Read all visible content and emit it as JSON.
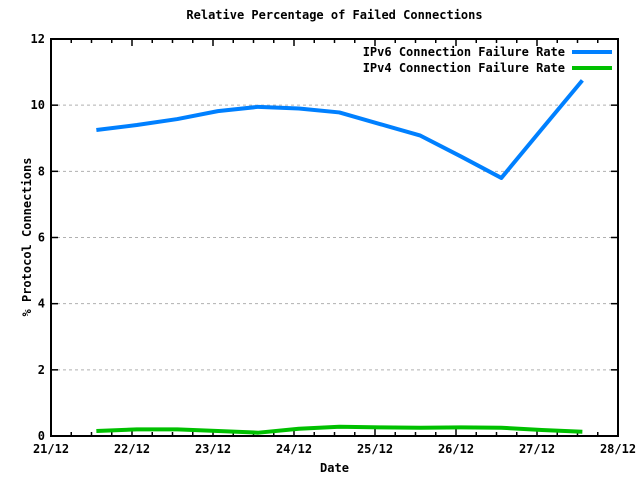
{
  "title": "Relative Percentage of Failed Connections",
  "chart_data": {
    "type": "line",
    "title": "Relative Percentage of Failed Connections",
    "xlabel": "Date",
    "ylabel": "% Protocol Connections",
    "xlim": [
      21,
      28
    ],
    "ylim": [
      0,
      12
    ],
    "grid": "horizontal-dashed",
    "grid_color": "#b0b0b0",
    "legend_position": "top-right-inside",
    "x_minor_step": 0.25,
    "x_ticks": [
      {
        "value": 21,
        "label": "21/12"
      },
      {
        "value": 22,
        "label": "22/12"
      },
      {
        "value": 23,
        "label": "23/12"
      },
      {
        "value": 24,
        "label": "24/12"
      },
      {
        "value": 25,
        "label": "25/12"
      },
      {
        "value": 26,
        "label": "26/12"
      },
      {
        "value": 27,
        "label": "27/12"
      },
      {
        "value": 28,
        "label": "28/12"
      }
    ],
    "y_ticks": [
      {
        "value": 0,
        "label": "0"
      },
      {
        "value": 2,
        "label": "2"
      },
      {
        "value": 4,
        "label": "4"
      },
      {
        "value": 6,
        "label": "6"
      },
      {
        "value": 8,
        "label": "8"
      },
      {
        "value": 10,
        "label": "10"
      },
      {
        "value": 12,
        "label": "12"
      }
    ],
    "x": [
      21.56,
      22.06,
      22.56,
      23.06,
      23.56,
      24.06,
      24.56,
      25.06,
      25.56,
      26.06,
      26.56,
      27.06,
      27.56
    ],
    "series": [
      {
        "name": "IPv6 Connection Failure Rate",
        "color": "#0080ff",
        "values": [
          9.25,
          9.4,
          9.58,
          9.82,
          9.95,
          9.9,
          9.78,
          9.43,
          9.08,
          8.45,
          7.8,
          9.28,
          10.75
        ]
      },
      {
        "name": "IPv4 Connection Failure Rate",
        "color": "#00c000",
        "values": [
          0.15,
          0.2,
          0.2,
          0.15,
          0.1,
          0.22,
          0.28,
          0.26,
          0.25,
          0.26,
          0.25,
          0.18,
          0.13
        ]
      }
    ]
  }
}
